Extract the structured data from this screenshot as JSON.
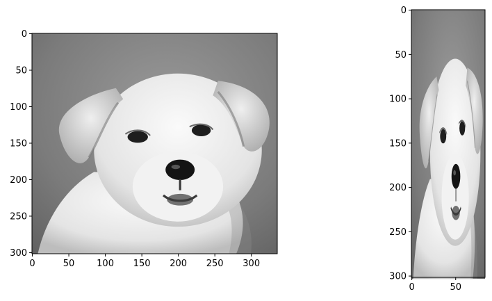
{
  "chart_data": [
    {
      "type": "image",
      "image_description": "grayscale photo of a white puppy, original proportions",
      "colormap": "gray",
      "image_width": 336,
      "image_height": 302,
      "xlim": [
        -0.5,
        335.5
      ],
      "ylim": [
        301.5,
        -0.5
      ],
      "xticks": [
        0,
        50,
        100,
        150,
        200,
        250,
        300
      ],
      "yticks": [
        0,
        50,
        100,
        150,
        200,
        250,
        300
      ],
      "title": "",
      "xlabel": "",
      "ylabel": ""
    },
    {
      "type": "image",
      "image_description": "same grayscale puppy photo, horizontally squeezed",
      "colormap": "gray",
      "image_width": 84,
      "image_height": 302,
      "xlim": [
        -0.5,
        83.5
      ],
      "ylim": [
        301.5,
        -0.5
      ],
      "xticks": [
        0,
        50
      ],
      "yticks": [
        0,
        50,
        100,
        150,
        200,
        250,
        300
      ],
      "title": "",
      "xlabel": "",
      "ylabel": ""
    }
  ]
}
